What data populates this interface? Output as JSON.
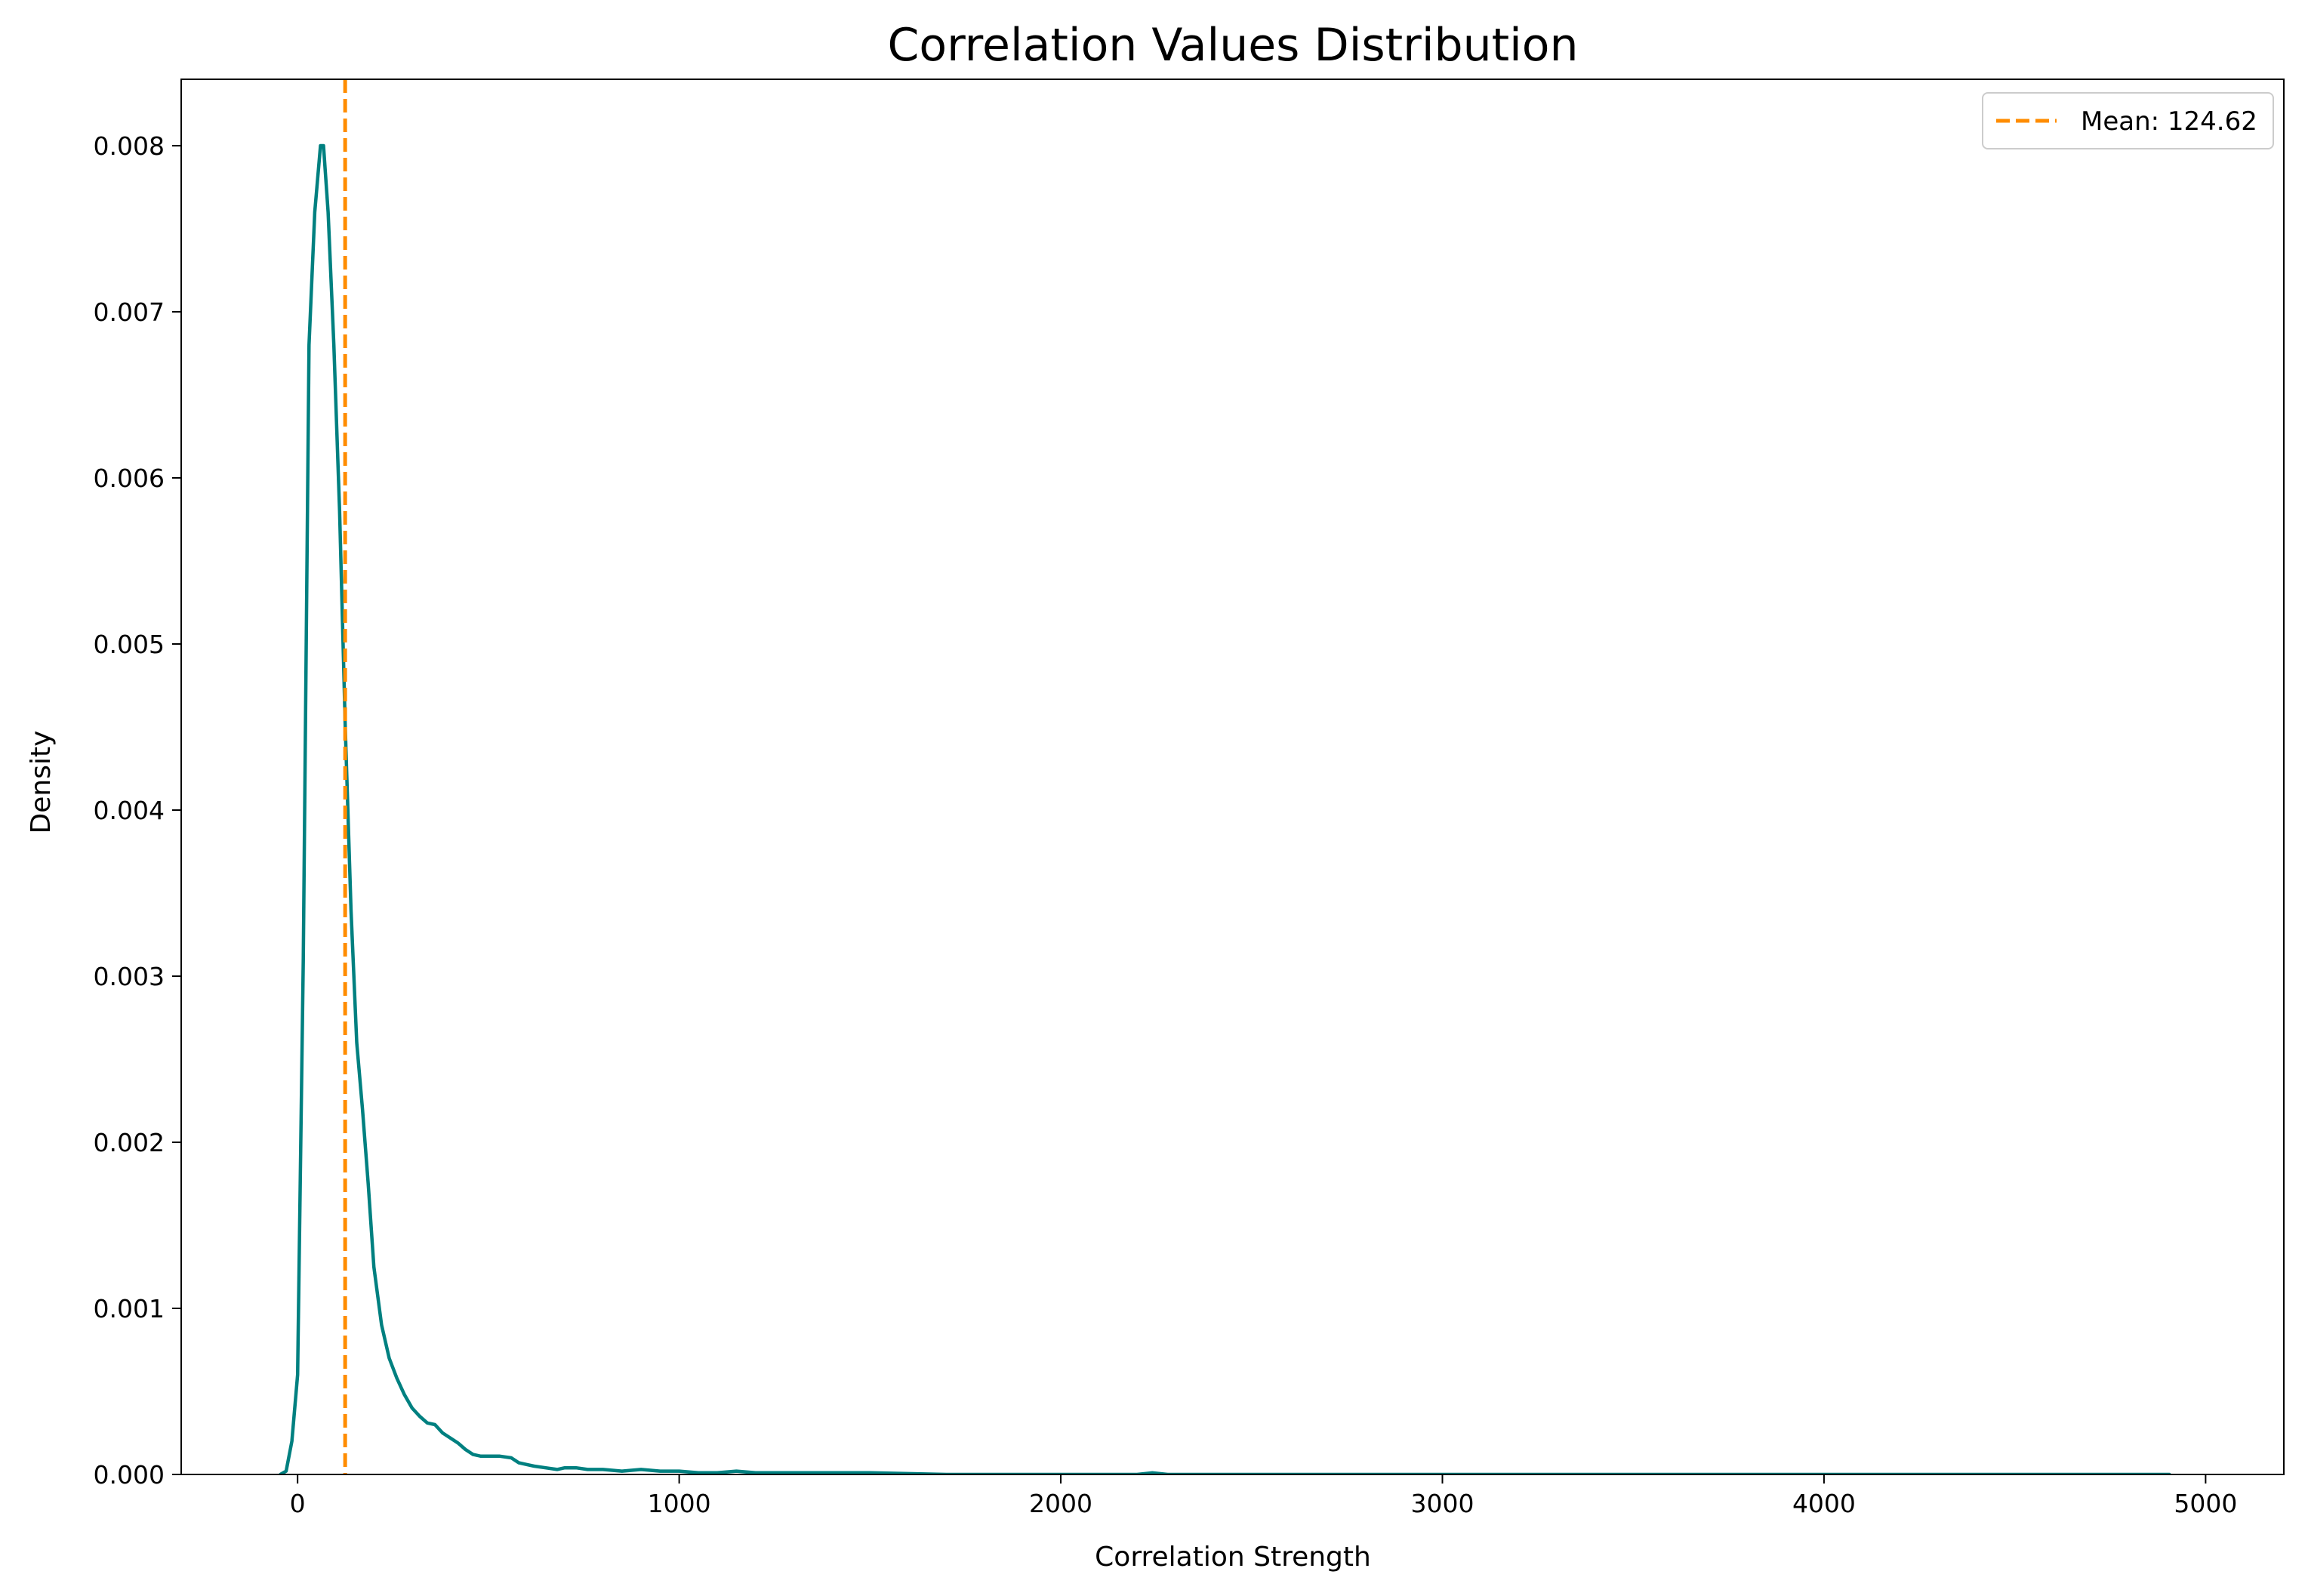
{
  "chart_data": {
    "type": "line",
    "title": "Correlation Values Distribution",
    "xlabel": "Correlation Strength",
    "ylabel": "Density",
    "xlim": [
      -305,
      5205
    ],
    "ylim": [
      0,
      0.0084
    ],
    "xticks": [
      0,
      1000,
      2000,
      3000,
      4000,
      5000
    ],
    "xtick_labels": [
      "0",
      "1000",
      "2000",
      "3000",
      "4000",
      "5000"
    ],
    "yticks": [
      0,
      0.001,
      0.002,
      0.003,
      0.004,
      0.005,
      0.006,
      0.007,
      0.008
    ],
    "ytick_labels": [
      "0.000",
      "0.001",
      "0.002",
      "0.003",
      "0.004",
      "0.005",
      "0.006",
      "0.007",
      "0.008"
    ],
    "grid": false,
    "legend_position": "top-right",
    "series": [
      {
        "name": "",
        "style": "solid",
        "color": "#008080",
        "x": [
          -45,
          -30,
          -15,
          0,
          15,
          30,
          45,
          60,
          68,
          80,
          95,
          110,
          125,
          140,
          155,
          170,
          185,
          200,
          220,
          240,
          260,
          280,
          300,
          320,
          340,
          360,
          380,
          400,
          420,
          440,
          460,
          480,
          500,
          530,
          560,
          580,
          600,
          620,
          650,
          680,
          700,
          730,
          760,
          800,
          850,
          900,
          950,
          1000,
          1050,
          1100,
          1150,
          1200,
          1300,
          1400,
          1500,
          1700,
          2000,
          2200,
          2240,
          2280,
          2500,
          3000,
          3500,
          4000,
          4500,
          4905
        ],
        "y": [
          0.0,
          2e-05,
          0.0002,
          0.0006,
          0.0031,
          0.0068,
          0.0076,
          0.008,
          0.008,
          0.0076,
          0.0068,
          0.0058,
          0.0045,
          0.0034,
          0.0026,
          0.0022,
          0.00175,
          0.00125,
          0.0009,
          0.0007,
          0.00058,
          0.00048,
          0.0004,
          0.00035,
          0.00031,
          0.0003,
          0.00025,
          0.00022,
          0.00019,
          0.00015,
          0.00012,
          0.00011,
          0.00011,
          0.00011,
          0.0001,
          7e-05,
          6e-05,
          5e-05,
          4e-05,
          3e-05,
          4e-05,
          4e-05,
          3e-05,
          3e-05,
          2e-05,
          3e-05,
          2e-05,
          2e-05,
          1e-05,
          1e-05,
          2e-05,
          1e-05,
          1e-05,
          1e-05,
          1e-05,
          0.0,
          0.0,
          0.0,
          1e-05,
          0.0,
          0.0,
          0.0,
          0.0,
          0.0,
          0.0,
          0.0
        ]
      },
      {
        "name": "Mean: 124.62",
        "style": "dashed",
        "color": "#ff8c00",
        "vline_x": 124.62
      }
    ]
  }
}
